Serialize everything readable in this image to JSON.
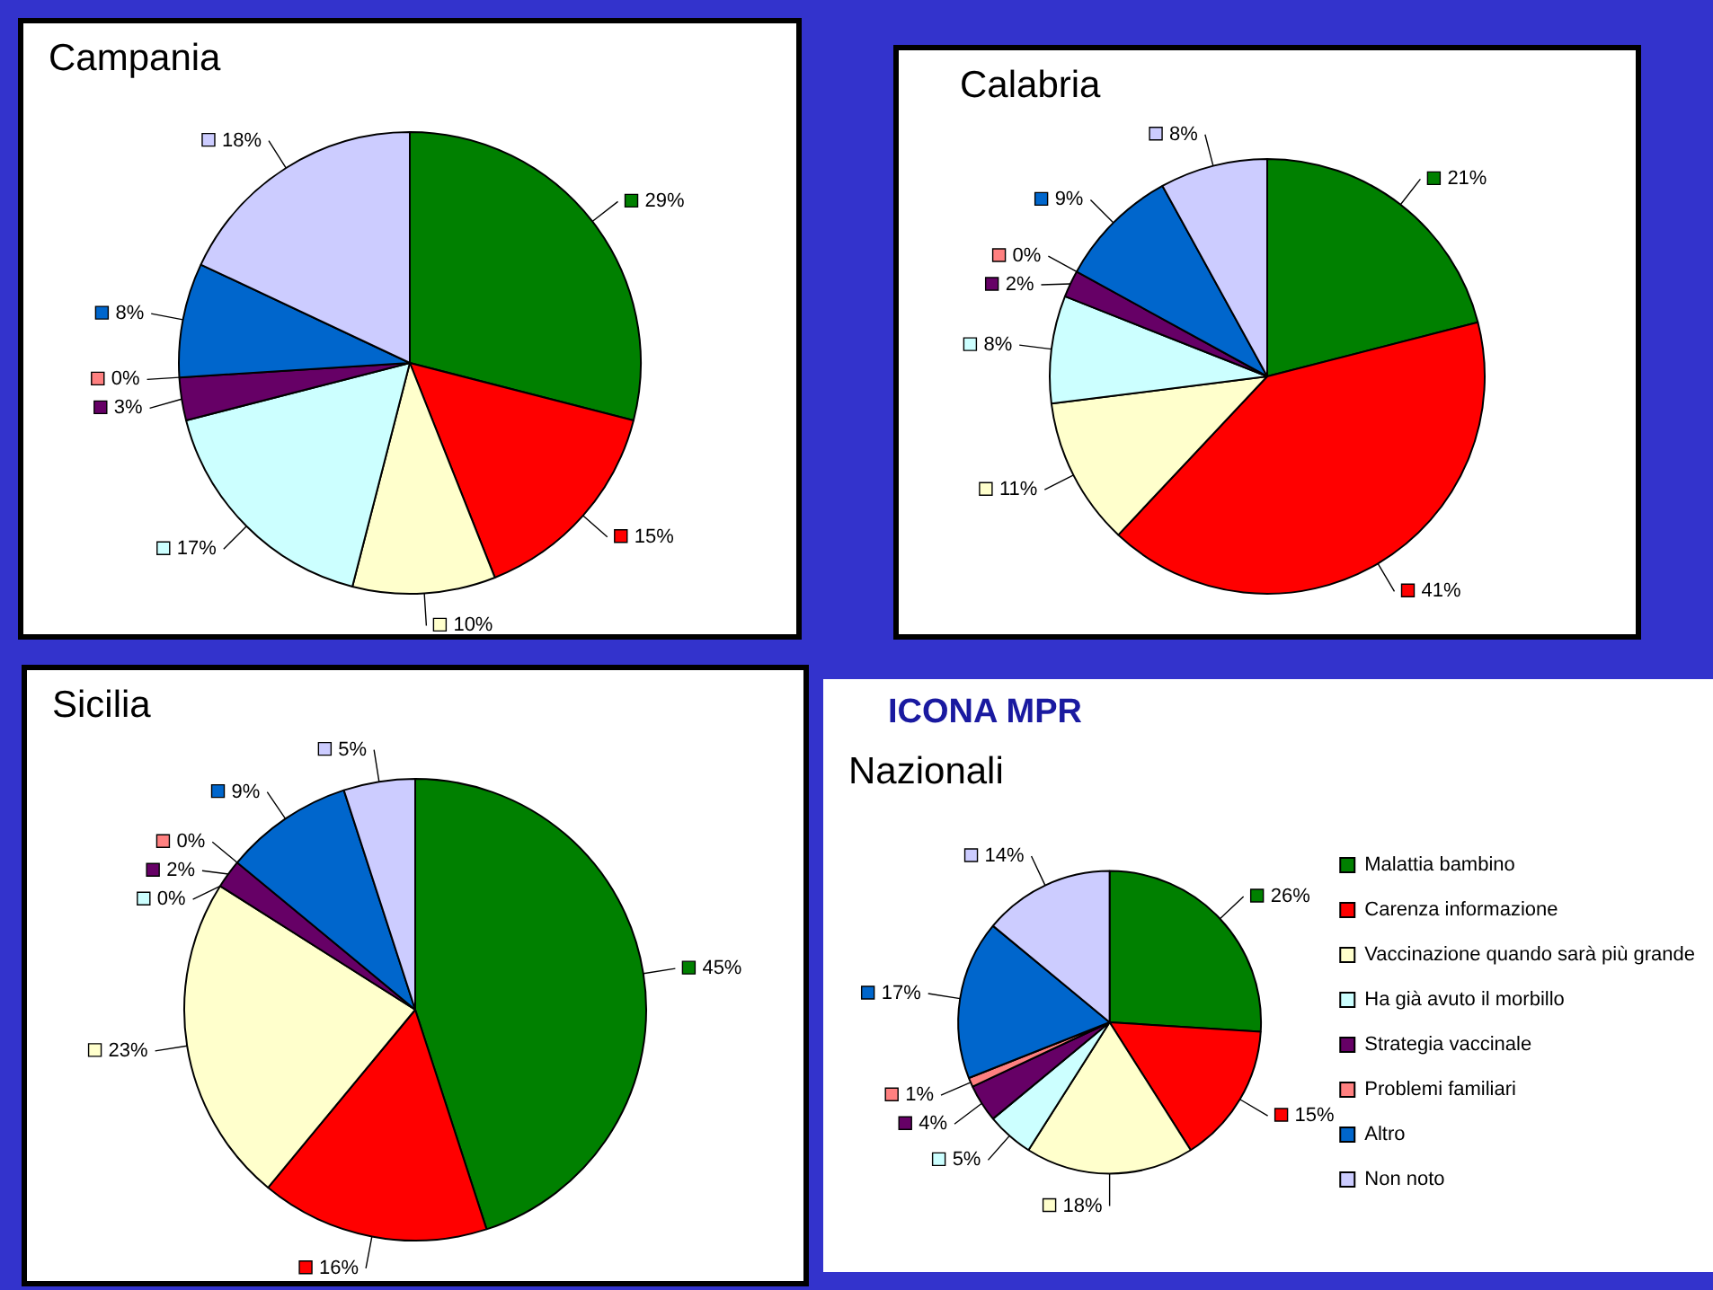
{
  "chart_data": [
    {
      "type": "pie",
      "title": "Campania",
      "categories": [
        null,
        null,
        null,
        null,
        null,
        null,
        null,
        null
      ],
      "values": [
        29,
        15,
        10,
        17,
        3,
        0,
        8,
        18
      ],
      "value_labels": [
        "29%",
        "15%",
        "10%",
        "17%",
        "3%",
        "0%",
        "8%",
        "18%"
      ],
      "colors": [
        "#008000",
        "#ff0000",
        "#ffffcc",
        "#ccffff",
        "#660066",
        "#ff8080",
        "#0066cc",
        "#ccccff"
      ]
    },
    {
      "type": "pie",
      "title": "Calabria",
      "categories": [
        null,
        null,
        null,
        null,
        null,
        null,
        null,
        null
      ],
      "values": [
        21,
        41,
        11,
        8,
        2,
        0,
        9,
        8
      ],
      "value_labels": [
        "21%",
        "41%",
        "11%",
        "8%",
        "2%",
        "0%",
        "9%",
        "8%"
      ],
      "colors": [
        "#008000",
        "#ff0000",
        "#ffffcc",
        "#ccffff",
        "#660066",
        "#ff8080",
        "#0066cc",
        "#ccccff"
      ]
    },
    {
      "type": "pie",
      "title": "Sicilia",
      "categories": [
        null,
        null,
        null,
        null,
        null,
        null,
        null,
        null
      ],
      "values": [
        45,
        16,
        23,
        0,
        2,
        0,
        9,
        5
      ],
      "value_labels": [
        "45%",
        "16%",
        "23%",
        "0%",
        "2%",
        "0%",
        "9%",
        "5%"
      ],
      "colors": [
        "#008000",
        "#ff0000",
        "#ffffcc",
        "#ccffff",
        "#660066",
        "#ff8080",
        "#0066cc",
        "#ccccff"
      ]
    },
    {
      "type": "pie",
      "title": "Nazionali",
      "annotations": [
        "ICONA MPR"
      ],
      "legend": "right",
      "categories": [
        "Malattia bambino",
        "Carenza informazione",
        "Vaccinazione quando sarà più grande",
        "Ha già avuto il morbillo",
        "Strategia vaccinale",
        "Problemi familiari",
        "Altro",
        "Non noto"
      ],
      "values": [
        26,
        15,
        18,
        5,
        4,
        1,
        17,
        14
      ],
      "value_labels": [
        "26%",
        "15%",
        "18%",
        "5%",
        "4%",
        "1%",
        "17%",
        "14%"
      ],
      "colors": [
        "#008000",
        "#ff0000",
        "#ffffcc",
        "#ccffff",
        "#660066",
        "#ff8080",
        "#0066cc",
        "#ccccff"
      ]
    }
  ]
}
